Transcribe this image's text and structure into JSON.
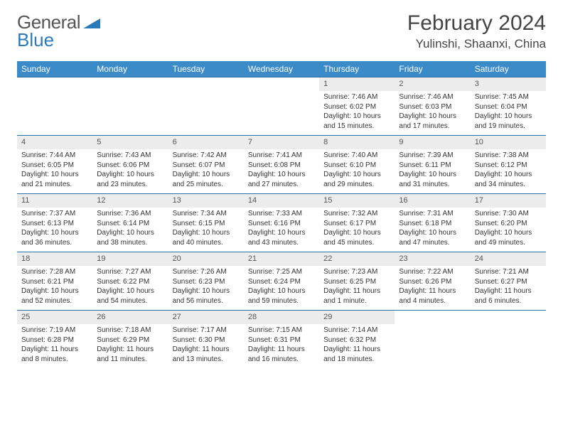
{
  "logo": {
    "word1": "General",
    "word2": "Blue"
  },
  "header": {
    "title": "February 2024",
    "location": "Yulinshi, Shaanxi, China"
  },
  "colors": {
    "header_bg": "#3b8bc9",
    "header_text": "#ffffff",
    "daynum_bg": "#ececec",
    "row_border": "#2b6fa8",
    "logo_blue": "#2b7bba",
    "text": "#333333",
    "background": "#ffffff"
  },
  "weekdays": [
    "Sunday",
    "Monday",
    "Tuesday",
    "Wednesday",
    "Thursday",
    "Friday",
    "Saturday"
  ],
  "layout": {
    "first_day_index": 4,
    "days_in_month": 29,
    "rows": 5,
    "cols": 7
  },
  "font": {
    "body_pt": 10,
    "daynum_pt": 11,
    "weekday_pt": 12,
    "title_pt": 30,
    "location_pt": 17,
    "logo_pt": 26
  },
  "days": [
    {
      "n": 1,
      "sunrise": "7:46 AM",
      "sunset": "6:02 PM",
      "daylight": "10 hours and 15 minutes."
    },
    {
      "n": 2,
      "sunrise": "7:46 AM",
      "sunset": "6:03 PM",
      "daylight": "10 hours and 17 minutes."
    },
    {
      "n": 3,
      "sunrise": "7:45 AM",
      "sunset": "6:04 PM",
      "daylight": "10 hours and 19 minutes."
    },
    {
      "n": 4,
      "sunrise": "7:44 AM",
      "sunset": "6:05 PM",
      "daylight": "10 hours and 21 minutes."
    },
    {
      "n": 5,
      "sunrise": "7:43 AM",
      "sunset": "6:06 PM",
      "daylight": "10 hours and 23 minutes."
    },
    {
      "n": 6,
      "sunrise": "7:42 AM",
      "sunset": "6:07 PM",
      "daylight": "10 hours and 25 minutes."
    },
    {
      "n": 7,
      "sunrise": "7:41 AM",
      "sunset": "6:08 PM",
      "daylight": "10 hours and 27 minutes."
    },
    {
      "n": 8,
      "sunrise": "7:40 AM",
      "sunset": "6:10 PM",
      "daylight": "10 hours and 29 minutes."
    },
    {
      "n": 9,
      "sunrise": "7:39 AM",
      "sunset": "6:11 PM",
      "daylight": "10 hours and 31 minutes."
    },
    {
      "n": 10,
      "sunrise": "7:38 AM",
      "sunset": "6:12 PM",
      "daylight": "10 hours and 34 minutes."
    },
    {
      "n": 11,
      "sunrise": "7:37 AM",
      "sunset": "6:13 PM",
      "daylight": "10 hours and 36 minutes."
    },
    {
      "n": 12,
      "sunrise": "7:36 AM",
      "sunset": "6:14 PM",
      "daylight": "10 hours and 38 minutes."
    },
    {
      "n": 13,
      "sunrise": "7:34 AM",
      "sunset": "6:15 PM",
      "daylight": "10 hours and 40 minutes."
    },
    {
      "n": 14,
      "sunrise": "7:33 AM",
      "sunset": "6:16 PM",
      "daylight": "10 hours and 43 minutes."
    },
    {
      "n": 15,
      "sunrise": "7:32 AM",
      "sunset": "6:17 PM",
      "daylight": "10 hours and 45 minutes."
    },
    {
      "n": 16,
      "sunrise": "7:31 AM",
      "sunset": "6:18 PM",
      "daylight": "10 hours and 47 minutes."
    },
    {
      "n": 17,
      "sunrise": "7:30 AM",
      "sunset": "6:20 PM",
      "daylight": "10 hours and 49 minutes."
    },
    {
      "n": 18,
      "sunrise": "7:28 AM",
      "sunset": "6:21 PM",
      "daylight": "10 hours and 52 minutes."
    },
    {
      "n": 19,
      "sunrise": "7:27 AM",
      "sunset": "6:22 PM",
      "daylight": "10 hours and 54 minutes."
    },
    {
      "n": 20,
      "sunrise": "7:26 AM",
      "sunset": "6:23 PM",
      "daylight": "10 hours and 56 minutes."
    },
    {
      "n": 21,
      "sunrise": "7:25 AM",
      "sunset": "6:24 PM",
      "daylight": "10 hours and 59 minutes."
    },
    {
      "n": 22,
      "sunrise": "7:23 AM",
      "sunset": "6:25 PM",
      "daylight": "11 hours and 1 minute."
    },
    {
      "n": 23,
      "sunrise": "7:22 AM",
      "sunset": "6:26 PM",
      "daylight": "11 hours and 4 minutes."
    },
    {
      "n": 24,
      "sunrise": "7:21 AM",
      "sunset": "6:27 PM",
      "daylight": "11 hours and 6 minutes."
    },
    {
      "n": 25,
      "sunrise": "7:19 AM",
      "sunset": "6:28 PM",
      "daylight": "11 hours and 8 minutes."
    },
    {
      "n": 26,
      "sunrise": "7:18 AM",
      "sunset": "6:29 PM",
      "daylight": "11 hours and 11 minutes."
    },
    {
      "n": 27,
      "sunrise": "7:17 AM",
      "sunset": "6:30 PM",
      "daylight": "11 hours and 13 minutes."
    },
    {
      "n": 28,
      "sunrise": "7:15 AM",
      "sunset": "6:31 PM",
      "daylight": "11 hours and 16 minutes."
    },
    {
      "n": 29,
      "sunrise": "7:14 AM",
      "sunset": "6:32 PM",
      "daylight": "11 hours and 18 minutes."
    }
  ],
  "labels": {
    "sunrise": "Sunrise:",
    "sunset": "Sunset:",
    "daylight": "Daylight:"
  }
}
